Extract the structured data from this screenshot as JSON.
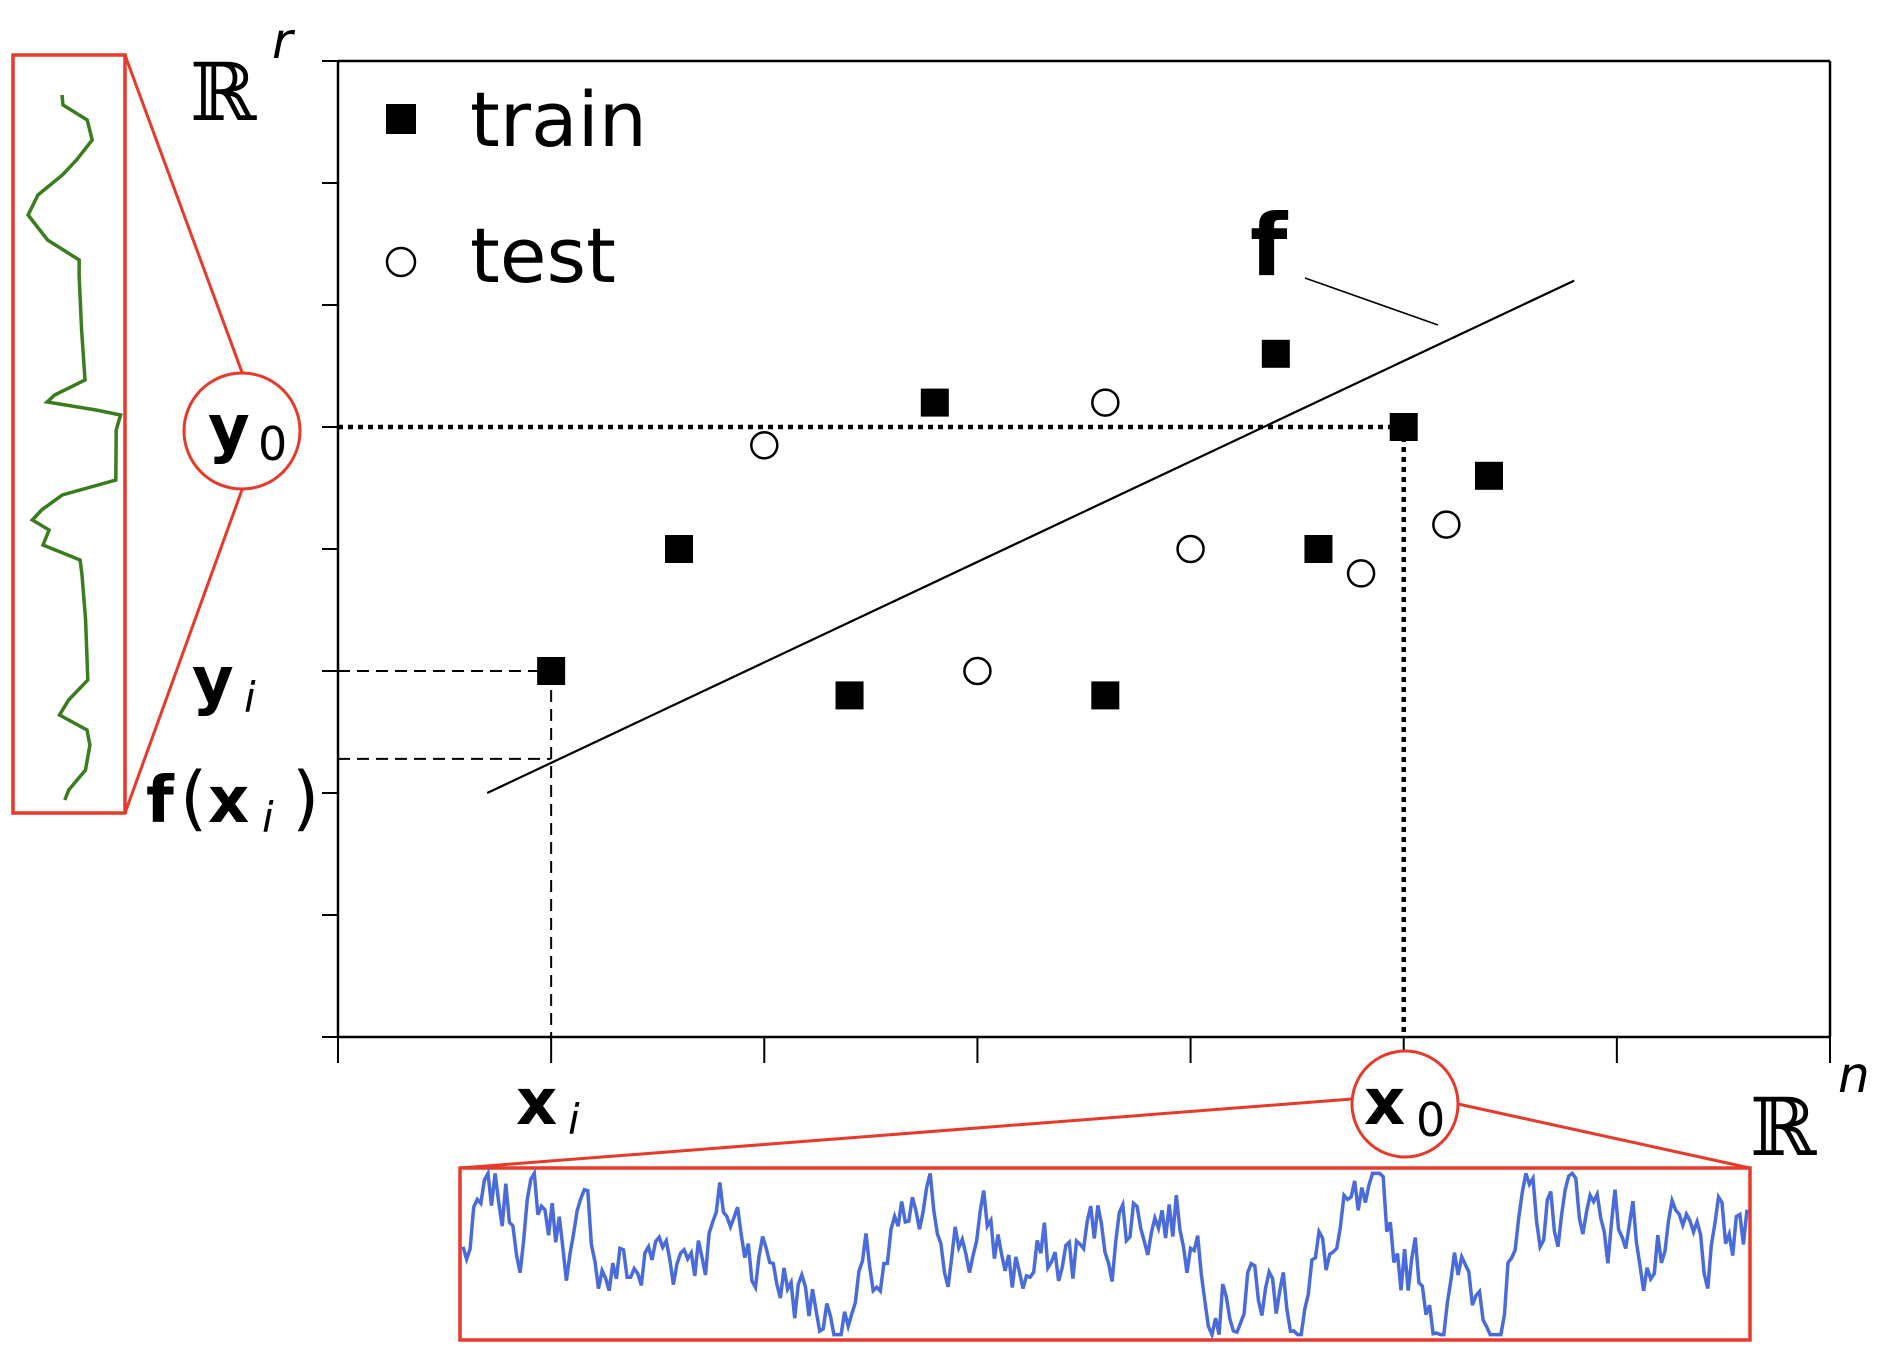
{
  "axes": {
    "y_space_base": "ℝ",
    "y_space_exp": "r",
    "x_space_base": "ℝ",
    "x_space_exp": "n"
  },
  "legend": {
    "train_label": "train",
    "test_label": "test"
  },
  "labels": {
    "f": "f",
    "y0_main": "y",
    "y0_sub": "0",
    "yi_main": "y",
    "yi_sub": "i",
    "fxi_f": "f",
    "fxi_open": "(",
    "fxi_x": "x",
    "fxi_sub": "i",
    "fxi_close": ")",
    "xi_main": "x",
    "xi_sub": "i",
    "x0_main": "x",
    "x0_sub": "0"
  },
  "colors": {
    "axis": "#000000",
    "zoom_box": "#e8392b",
    "y_signal": "#3a7d1e",
    "x_signal": "#4a6bdc"
  },
  "chart_data": {
    "type": "scatter",
    "xlim": [
      0,
      7
    ],
    "ylim": [
      0,
      8
    ],
    "series": [
      {
        "name": "train",
        "marker": "filled-square",
        "points": [
          [
            1.0,
            3.0
          ],
          [
            1.6,
            4.0
          ],
          [
            2.4,
            2.8
          ],
          [
            2.8,
            5.2
          ],
          [
            3.6,
            2.8
          ],
          [
            4.4,
            5.6
          ],
          [
            4.6,
            4.0
          ],
          [
            5.0,
            5.0
          ],
          [
            5.4,
            4.6
          ]
        ]
      },
      {
        "name": "test",
        "marker": "open-circle",
        "points": [
          [
            2.0,
            4.85
          ],
          [
            3.0,
            3.0
          ],
          [
            3.6,
            5.2
          ],
          [
            4.0,
            4.0
          ],
          [
            4.8,
            3.8
          ],
          [
            5.2,
            4.2
          ]
        ]
      }
    ],
    "regression_line": {
      "name": "f",
      "from": [
        0.7,
        2.0
      ],
      "to": [
        5.8,
        6.2
      ]
    },
    "highlight_x0": [
      5.0,
      5.0
    ],
    "highlight_xi": [
      1.0,
      3.0
    ],
    "fxi_value": 2.28
  }
}
